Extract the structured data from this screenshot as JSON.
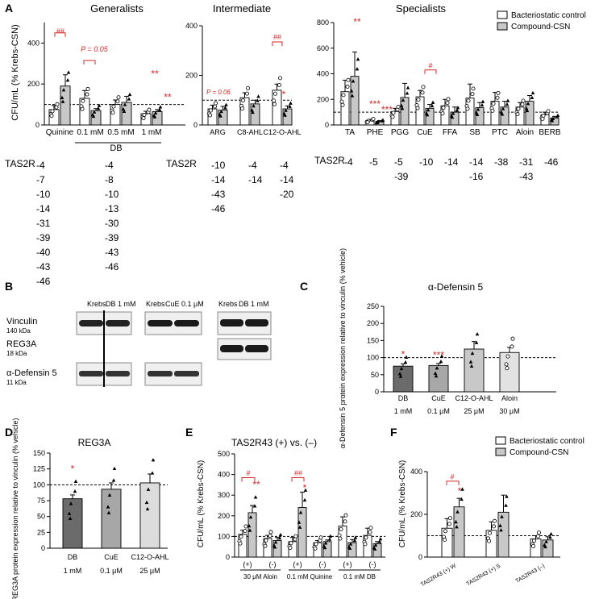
{
  "colors": {
    "control": "#ffffff",
    "compound": "#c8c8c8",
    "stroke": "#000000",
    "sig": "#d62728",
    "grey_bar": "#a7a7a7"
  },
  "panelA": {
    "letter": "A",
    "ylabel": "CFU/mL (% Krebs-CSN)",
    "titles": [
      "Generalists",
      "Intermediate",
      "Specialists"
    ],
    "legend": [
      "Bacteriostatic control",
      "Compound-CSN"
    ],
    "db_group": "DB",
    "tas_label": "TAS2R",
    "gen_cols": [
      [
        "-4",
        "-7",
        "-10",
        "-14",
        "-31",
        "-39",
        "-40",
        "-43",
        "-46"
      ],
      [
        "-4",
        "-8",
        "-10",
        "-13",
        "-30",
        "-39",
        "-43",
        "-46"
      ]
    ],
    "int_cols": [
      [
        "-10",
        "-14",
        "-43",
        "-46"
      ],
      [
        "-4",
        "-14"
      ],
      [
        "-4",
        "-14",
        "-20"
      ]
    ],
    "spec_cols": [
      [
        "-4"
      ],
      [
        "-5"
      ],
      [
        "-5",
        "-39"
      ],
      [
        "-10"
      ],
      [
        "-14"
      ],
      [
        "-14",
        "-16"
      ],
      [
        "-38"
      ],
      [
        "-31",
        "-43"
      ],
      [
        "-46"
      ]
    ],
    "p_gen": "P = 0.05",
    "p_int": "P = 0.06"
  },
  "chart_data": [
    {
      "type": "bar",
      "title": "Generalists",
      "ylabel": "CFU/mL (% Krebs-CSN)",
      "ylim": [
        0,
        500
      ],
      "categories": [
        "Quinine",
        "0.1 mM",
        "0.5 mM",
        "1 mM"
      ],
      "group_label": "DB",
      "series": [
        {
          "name": "Bacteriostatic control",
          "values": [
            75,
            130,
            100,
            55
          ],
          "errors": [
            20,
            38,
            22,
            12
          ]
        },
        {
          "name": "Compound-CSN",
          "values": [
            190,
            70,
            110,
            65
          ],
          "errors": [
            55,
            10,
            30,
            10
          ]
        }
      ],
      "annotations": [
        "##",
        "P = 0.05",
        "**",
        "**"
      ]
    },
    {
      "type": "bar",
      "title": "Intermediate",
      "ylim": [
        0,
        400
      ],
      "categories": [
        "ARG",
        "C8-AHL",
        "C12-O-AHL"
      ],
      "series": [
        {
          "name": "Bacteriostatic control",
          "values": [
            65,
            110,
            140
          ],
          "errors": [
            15,
            20,
            25
          ]
        },
        {
          "name": "Compound-CSN",
          "values": [
            60,
            85,
            65
          ],
          "errors": [
            15,
            15,
            12
          ]
        }
      ],
      "annotations": [
        "P = 0.06",
        "##",
        "*"
      ]
    },
    {
      "type": "bar",
      "title": "Specialists",
      "ylim": [
        0,
        800
      ],
      "categories": [
        "TA",
        "PHE",
        "PGG",
        "CuE",
        "FFA",
        "SB",
        "PTC",
        "Aloin",
        "BERB"
      ],
      "series": [
        {
          "name": "Bacteriostatic control",
          "values": [
            260,
            35,
            105,
            220,
            150,
            210,
            185,
            140,
            80
          ],
          "errors": [
            90,
            8,
            25,
            50,
            50,
            110,
            70,
            35,
            20
          ]
        },
        {
          "name": "Compound-CSN",
          "values": [
            380,
            28,
            215,
            130,
            100,
            135,
            140,
            185,
            55
          ],
          "errors": [
            190,
            6,
            110,
            30,
            40,
            40,
            45,
            45,
            12
          ]
        }
      ],
      "annotations": [
        "**",
        "***",
        "***",
        "#"
      ]
    },
    {
      "type": "bar",
      "title": "α-Defensin 5",
      "ylabel": "α-Defensin 5 protein expression relative to vinculin (% vehicle)",
      "ylim": [
        0,
        250
      ],
      "categories": [
        "DB",
        "CuE",
        "C12-O-AHL",
        "Aloin"
      ],
      "doses": [
        "1 mM",
        "0.1 μM",
        "25 μM",
        "30 μM"
      ],
      "values": [
        75,
        77,
        125,
        115
      ],
      "errors": [
        7,
        6,
        22,
        15
      ],
      "annotations": [
        "*",
        "***"
      ]
    },
    {
      "type": "bar",
      "title": "REG3A",
      "ylabel": "REG3A protein expression relative to vinculin (% vehicle)",
      "ylim": [
        0,
        150
      ],
      "categories": [
        "DB",
        "CuE",
        "C12-O-AHL"
      ],
      "doses": [
        "1 mM",
        "0.1 μM",
        "25 μM"
      ],
      "values": [
        78,
        93,
        103
      ],
      "errors": [
        6,
        10,
        14
      ],
      "annotations": [
        "*"
      ]
    },
    {
      "type": "bar",
      "title": "TAS2R43 (+) vs. (–)",
      "ylabel": "CFU/mL (% Krebs-CSN)",
      "ylim": [
        0,
        500
      ],
      "categories": [
        "(+)",
        "(-)",
        "(+)",
        "(-)",
        "(+)",
        "(-)"
      ],
      "groups": [
        "30 μM Aloin",
        "0.1 mM Quinine",
        "0.1 mM DB"
      ],
      "series": [
        {
          "name": "Bacteriostatic control",
          "values": [
            110,
            90,
            75,
            70,
            150,
            105
          ],
          "errors": [
            20,
            15,
            20,
            10,
            45,
            35
          ]
        },
        {
          "name": "Compound-CSN",
          "values": [
            215,
            80,
            240,
            75,
            70,
            65
          ],
          "errors": [
            35,
            15,
            75,
            8,
            15,
            10
          ]
        }
      ],
      "annotations": [
        "#",
        "**",
        "##",
        "*"
      ]
    },
    {
      "type": "bar",
      "ylabel": "CFU/mL (% Krebs-CSN)",
      "ylim": [
        0,
        400
      ],
      "categories": [
        "TAS2R43 (+) W",
        "TAS2R43 (+) S",
        "TAS2R43 (–)"
      ],
      "series": [
        {
          "name": "Bacteriostatic control",
          "values": [
            135,
            125,
            85
          ],
          "errors": [
            45,
            40,
            15
          ]
        },
        {
          "name": "Compound-CSN",
          "values": [
            235,
            210,
            80
          ],
          "errors": [
            40,
            80,
            15
          ]
        }
      ],
      "annotations": [
        "#",
        "*"
      ]
    }
  ],
  "panelB": {
    "letter": "B",
    "blot1_headers": [
      "Krebs",
      "DB 1 mM"
    ],
    "blot2_headers": [
      "Krebs",
      "CuE 0.1 μM"
    ],
    "blot3_headers": [
      "Krebs",
      "DB 1 mM"
    ],
    "row_labels": [
      {
        "name": "Vinculin",
        "kda": "140 kDa"
      },
      {
        "name": "REG3A",
        "kda": "18 kDa"
      },
      {
        "name": "α-Defensin 5",
        "kda": "11 kDa"
      }
    ]
  },
  "panelC": {
    "letter": "C",
    "title": "α-Defensin 5",
    "ylabel": "α-Defensin 5 protein expression relative to vinculin (% vehicle)"
  },
  "panelD": {
    "letter": "D",
    "title": "REG3A",
    "ylabel": "REG3A protein expression relative to vinculin (% vehicle)"
  },
  "panelE": {
    "letter": "E",
    "title": "TAS2R43 (+) vs. (–)",
    "ylabel": "CFU/mL (% Krebs-CSN)"
  },
  "panelF": {
    "letter": "F",
    "ylabel": "CFU/mL (% Krebs-CSN)",
    "legend": [
      "Bacteriostatic control",
      "Compound-CSN"
    ]
  }
}
